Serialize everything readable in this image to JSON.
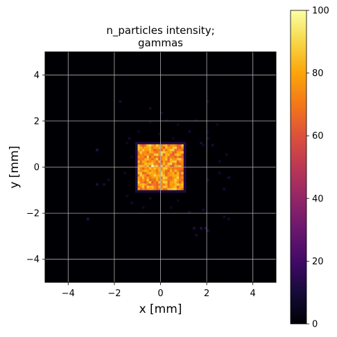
{
  "chart_data": {
    "type": "heatmap",
    "title_lines": [
      "n_particles intensity;",
      "gammas"
    ],
    "xlabel": "x [mm]",
    "ylabel": "y [mm]",
    "xlim": [
      -5,
      5
    ],
    "ylim": [
      -5,
      5
    ],
    "x_ticks": [
      -4,
      -2,
      0,
      2,
      4
    ],
    "y_ticks": [
      -4,
      -2,
      0,
      2,
      4
    ],
    "x_tick_labels": [
      "−4",
      "−2",
      "0",
      "2",
      "4"
    ],
    "y_tick_labels": [
      "−4",
      "−2",
      "0",
      "2",
      "4"
    ],
    "grid": true,
    "background_value": 0,
    "colormap": "inferno",
    "colorbar": {
      "range": [
        0,
        100
      ],
      "ticks": [
        0,
        20,
        40,
        60,
        80,
        100
      ],
      "tick_labels": [
        "0",
        "20",
        "40",
        "60",
        "80",
        "100"
      ]
    },
    "bins": {
      "nx": 100,
      "ny": 100,
      "x_range": [
        -5,
        5
      ],
      "y_range": [
        -5,
        5
      ]
    },
    "core_region": {
      "x_range": [
        -1,
        1
      ],
      "y_range": [
        -1,
        1
      ],
      "typical_value_range": [
        62,
        90
      ],
      "peak_value": 100,
      "peak_location": [
        -0.35,
        0.0
      ]
    },
    "halo_value": 12,
    "scattered_points": [
      [
        -2.8,
        0.8,
        15
      ],
      [
        -2.7,
        -0.8,
        12
      ],
      [
        -2.5,
        -0.8,
        10
      ],
      [
        -3.1,
        -2.2,
        14
      ],
      [
        -2.2,
        -0.6,
        8
      ],
      [
        -1.8,
        2.8,
        10
      ],
      [
        -1.5,
        1.1,
        6
      ],
      [
        -1.3,
        -1.6,
        8
      ],
      [
        -1.4,
        1.3,
        8
      ],
      [
        -0.9,
        1.6,
        7
      ],
      [
        -0.5,
        1.9,
        6
      ],
      [
        -0.4,
        2.6,
        8
      ],
      [
        0.1,
        2.3,
        7
      ],
      [
        0.3,
        2.0,
        6
      ],
      [
        0.6,
        1.2,
        6
      ],
      [
        1.3,
        1.5,
        8
      ],
      [
        1.5,
        2.0,
        7
      ],
      [
        1.7,
        1.1,
        10
      ],
      [
        1.8,
        0.9,
        6
      ],
      [
        2.0,
        1.2,
        9
      ],
      [
        2.1,
        1.5,
        6
      ],
      [
        2.1,
        -0.6,
        8
      ],
      [
        2.2,
        0.9,
        9
      ],
      [
        2.4,
        1.8,
        6
      ],
      [
        2.6,
        -0.2,
        7
      ],
      [
        2.8,
        0.6,
        8
      ],
      [
        2.9,
        -0.5,
        10
      ],
      [
        2.7,
        -0.9,
        9
      ],
      [
        1.9,
        -2.6,
        12
      ],
      [
        2.0,
        -2.7,
        12
      ],
      [
        1.7,
        -2.6,
        14
      ],
      [
        1.4,
        -2.6,
        12
      ],
      [
        1.5,
        -3.0,
        10
      ],
      [
        2.7,
        -2.1,
        8
      ],
      [
        2.9,
        -2.2,
        8
      ],
      [
        1.2,
        -2.0,
        8
      ],
      [
        0.8,
        -1.5,
        6
      ],
      [
        -0.7,
        -1.7,
        7
      ],
      [
        -0.5,
        -1.4,
        8
      ],
      [
        -0.2,
        -1.1,
        6
      ],
      [
        -1.5,
        -1.2,
        6
      ],
      [
        -0.8,
        -1.1,
        8
      ],
      [
        -1.6,
        -0.2,
        6
      ],
      [
        -1.3,
        0.4,
        6
      ],
      [
        0.4,
        -1.7,
        6
      ],
      [
        1.8,
        -1.9,
        8
      ],
      [
        2.5,
        0.3,
        7
      ],
      [
        -0.1,
        1.4,
        7
      ],
      [
        0.8,
        1.8,
        6
      ],
      [
        2.0,
        2.8,
        8
      ]
    ]
  }
}
